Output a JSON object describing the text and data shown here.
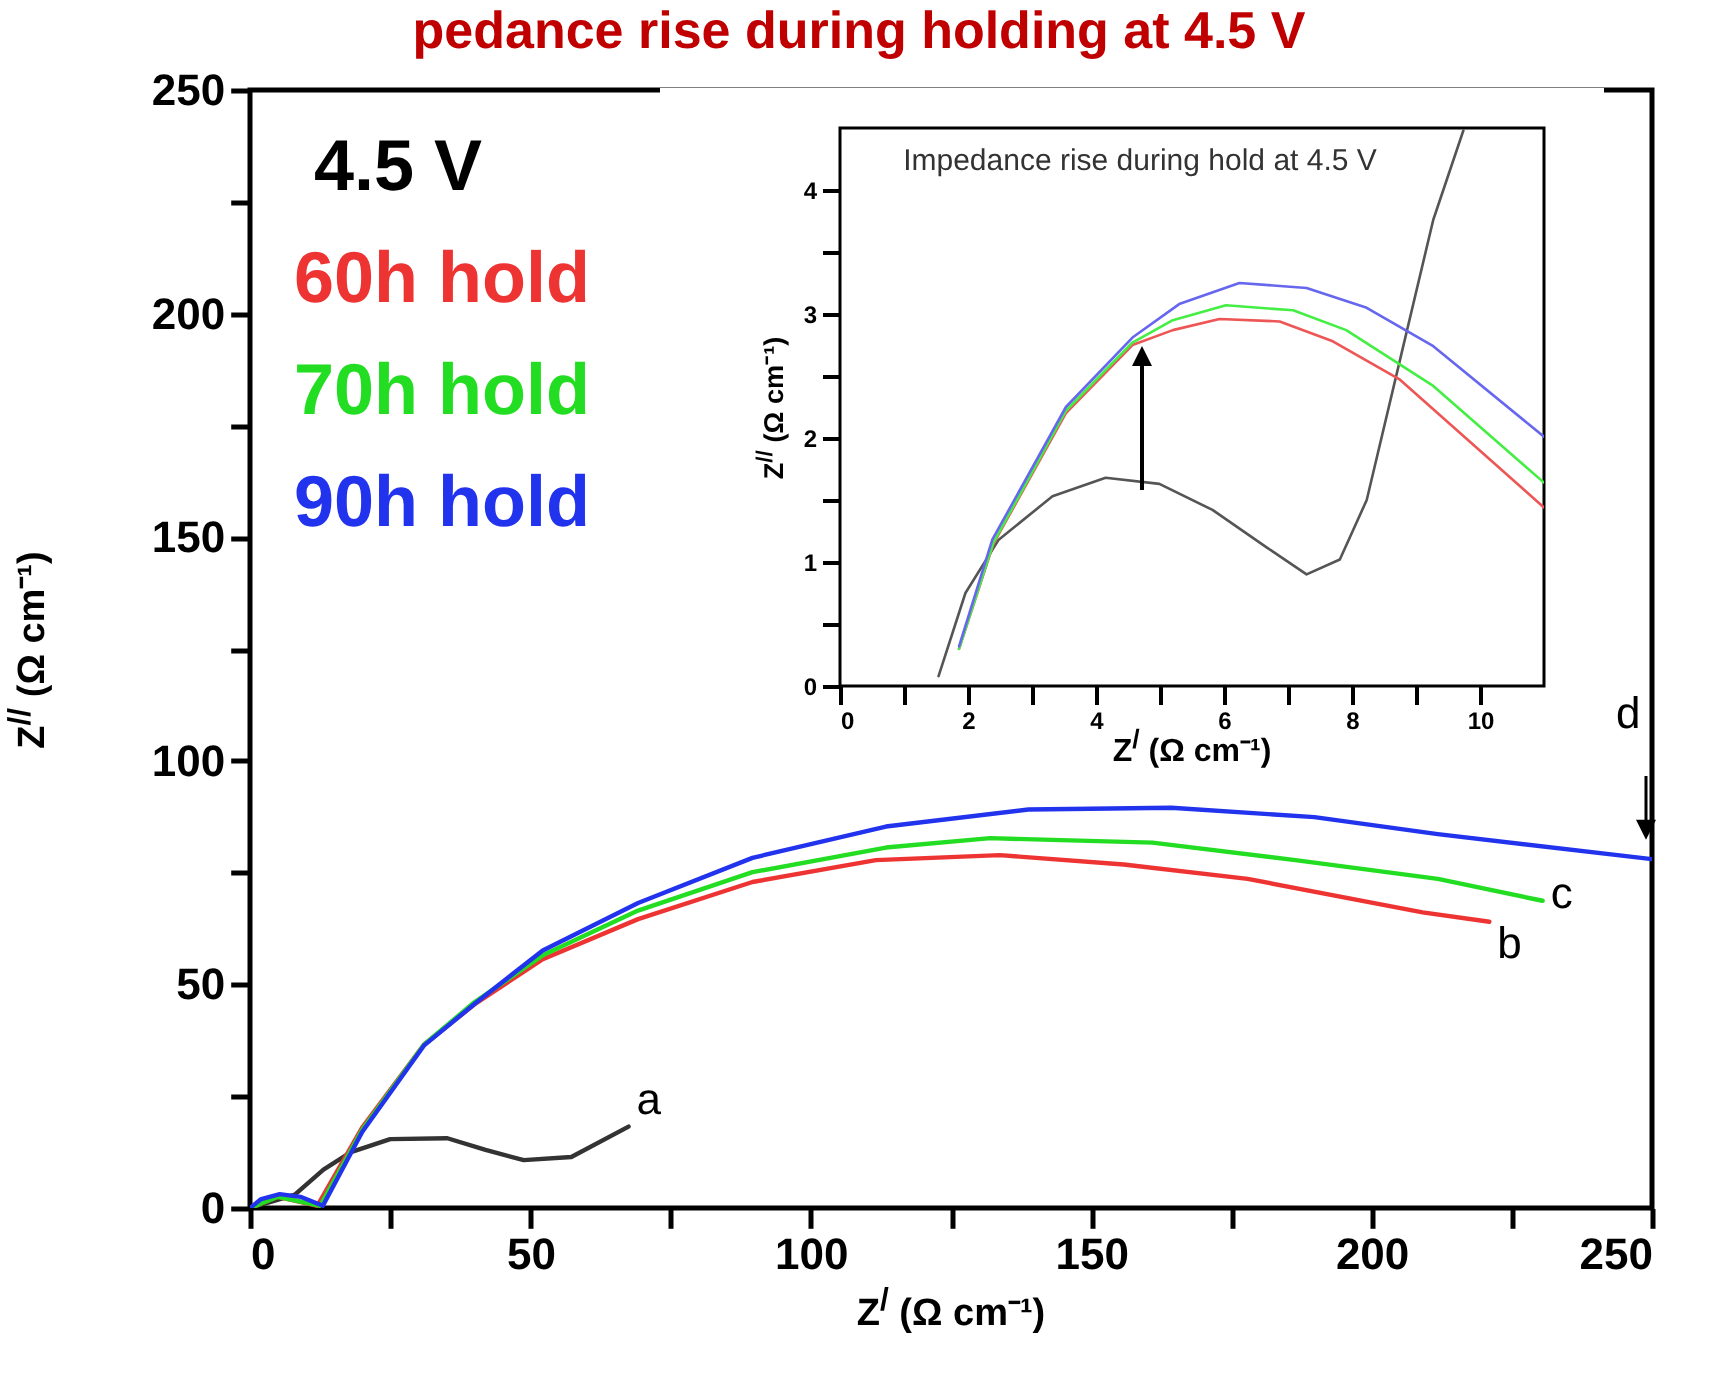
{
  "chart_data": [
    {
      "type": "line",
      "title": "pedance rise during holding at 4.5 V",
      "xlabel": "Z$^{/}$ (Ω cm⁻¹)",
      "ylabel": "Z$^{//}$ (Ω cm⁻¹)",
      "legend_title": "4.5 V",
      "legend": "top left",
      "xlim": [
        0,
        250
      ],
      "ylim": [
        0,
        250
      ],
      "xticks": [
        0,
        {
          "value": 25,
          "label": null
        },
        50,
        {
          "value": 75,
          "label": null
        },
        100,
        {
          "value": 125,
          "label": null
        },
        150,
        {
          "value": 175,
          "label": null
        },
        200,
        {
          "value": 225,
          "label": null
        },
        250
      ],
      "yticks": [
        0,
        {
          "value": 25,
          "label": null
        },
        50,
        {
          "value": 75,
          "label": null
        },
        100,
        {
          "value": 125,
          "label": null
        },
        150,
        {
          "value": 175,
          "label": null
        },
        200,
        {
          "value": 225,
          "label": null
        },
        250
      ],
      "series": [
        {
          "color": "#333333",
          "x": [
            0,
            4,
            8,
            13.1,
            18,
            25,
            35.2,
            42,
            48.8,
            57.3,
            67.5
          ],
          "values": [
            0,
            1.5,
            3,
            8.6,
            12.5,
            15.4,
            15.6,
            13,
            10.7,
            11.4,
            18.2
          ]
        },
        {
          "name": "60h hold",
          "color": "#ee3333",
          "x": [
            0,
            5,
            12,
            20,
            31,
            40,
            52,
            69.2,
            89.6,
            111.6,
            133.7,
            155.8,
            177.9,
            209.1,
            221
          ],
          "values": [
            0,
            2.5,
            0.5,
            18,
            36.5,
            45.5,
            55.5,
            64.6,
            72.9,
            77.8,
            78.9,
            76.8,
            73.6,
            66.1,
            64
          ]
        },
        {
          "name": "70h hold",
          "color": "#22dd22",
          "x": [
            0,
            5,
            12.5,
            20,
            31,
            40,
            52.2,
            69.2,
            89.6,
            113.4,
            132,
            160.9,
            186.4,
            211.8,
            230.5
          ],
          "values": [
            0,
            2.5,
            0.5,
            17.5,
            36.5,
            46,
            56.5,
            66.5,
            75.1,
            80.6,
            82.7,
            81.7,
            77.8,
            73.6,
            68.7
          ]
        },
        {
          "name": "90h hold",
          "color": "#2233ee",
          "x": [
            0,
            2,
            5.3,
            9,
            13,
            20,
            31,
            40.3,
            52.2,
            69.2,
            89.6,
            113.4,
            138.8,
            164.3,
            189.8,
            211.8,
            250
          ],
          "values": [
            0,
            2,
            3.1,
            2.5,
            0.5,
            17,
            36.3,
            45.9,
            57.6,
            68.2,
            78.3,
            85.3,
            89.1,
            89.5,
            87.4,
            83.6,
            78
          ]
        }
      ],
      "annotations": [
        "a",
        "b",
        "c",
        "d"
      ]
    },
    {
      "type": "line",
      "xlabel": "Z$^{/}$ (Ω cm⁻¹)",
      "ylabel": "Z$^{//}$ (Ω cm⁻¹)",
      "xlim": [
        0,
        11
      ],
      "ylim": [
        0,
        4.5
      ],
      "xticks": [
        0,
        {
          "value": 1,
          "label": null
        },
        2,
        {
          "value": 3,
          "label": null
        },
        4,
        {
          "value": 5,
          "label": null
        },
        6,
        {
          "value": 7,
          "label": null
        },
        8,
        {
          "value": 9,
          "label": null
        },
        10
      ],
      "yticks": [
        0,
        {
          "value": 0.5,
          "label": null
        },
        1,
        {
          "value": 1.5,
          "label": null
        },
        2,
        {
          "value": 2.5,
          "label": null
        },
        3,
        {
          "value": 3.5,
          "label": null
        },
        4
      ],
      "series": [
        {
          "color": "#555555",
          "x": [
            1.54,
            1.96,
            2.48,
            3.32,
            4.15,
            4.99,
            5.82,
            6.66,
            7.29,
            7.81,
            8.23,
            8.75,
            9.27,
            9.74
          ],
          "values": [
            0.08,
            0.75,
            1.18,
            1.53,
            1.68,
            1.63,
            1.42,
            1.12,
            0.9,
            1.02,
            1.5,
            2.63,
            3.76,
            4.48
          ]
        },
        {
          "color": "#ee5555",
          "x": [
            1.86,
            2.4,
            3.53,
            4.57,
            5.2,
            5.93,
            6.87,
            7.7,
            8.75,
            11
          ],
          "values": [
            0.3,
            1.15,
            2.2,
            2.75,
            2.87,
            2.96,
            2.94,
            2.78,
            2.47,
            1.44
          ]
        },
        {
          "color": "#44ee44",
          "x": [
            1.86,
            2.4,
            3.53,
            4.57,
            5.2,
            6.03,
            7.08,
            7.91,
            9.27,
            11
          ],
          "values": [
            0.3,
            1.16,
            2.22,
            2.77,
            2.95,
            3.07,
            3.03,
            2.87,
            2.42,
            1.64
          ]
        },
        {
          "color": "#6666ee",
          "x": [
            1.86,
            2.38,
            3.53,
            4.57,
            5.3,
            6.24,
            7.29,
            8.23,
            9.27,
            11
          ],
          "values": [
            0.32,
            1.18,
            2.25,
            2.81,
            3.08,
            3.25,
            3.21,
            3.05,
            2.74,
            2.01
          ]
        }
      ],
      "annotations": [
        "Impedance rise during hold at 4.5 V"
      ]
    }
  ]
}
